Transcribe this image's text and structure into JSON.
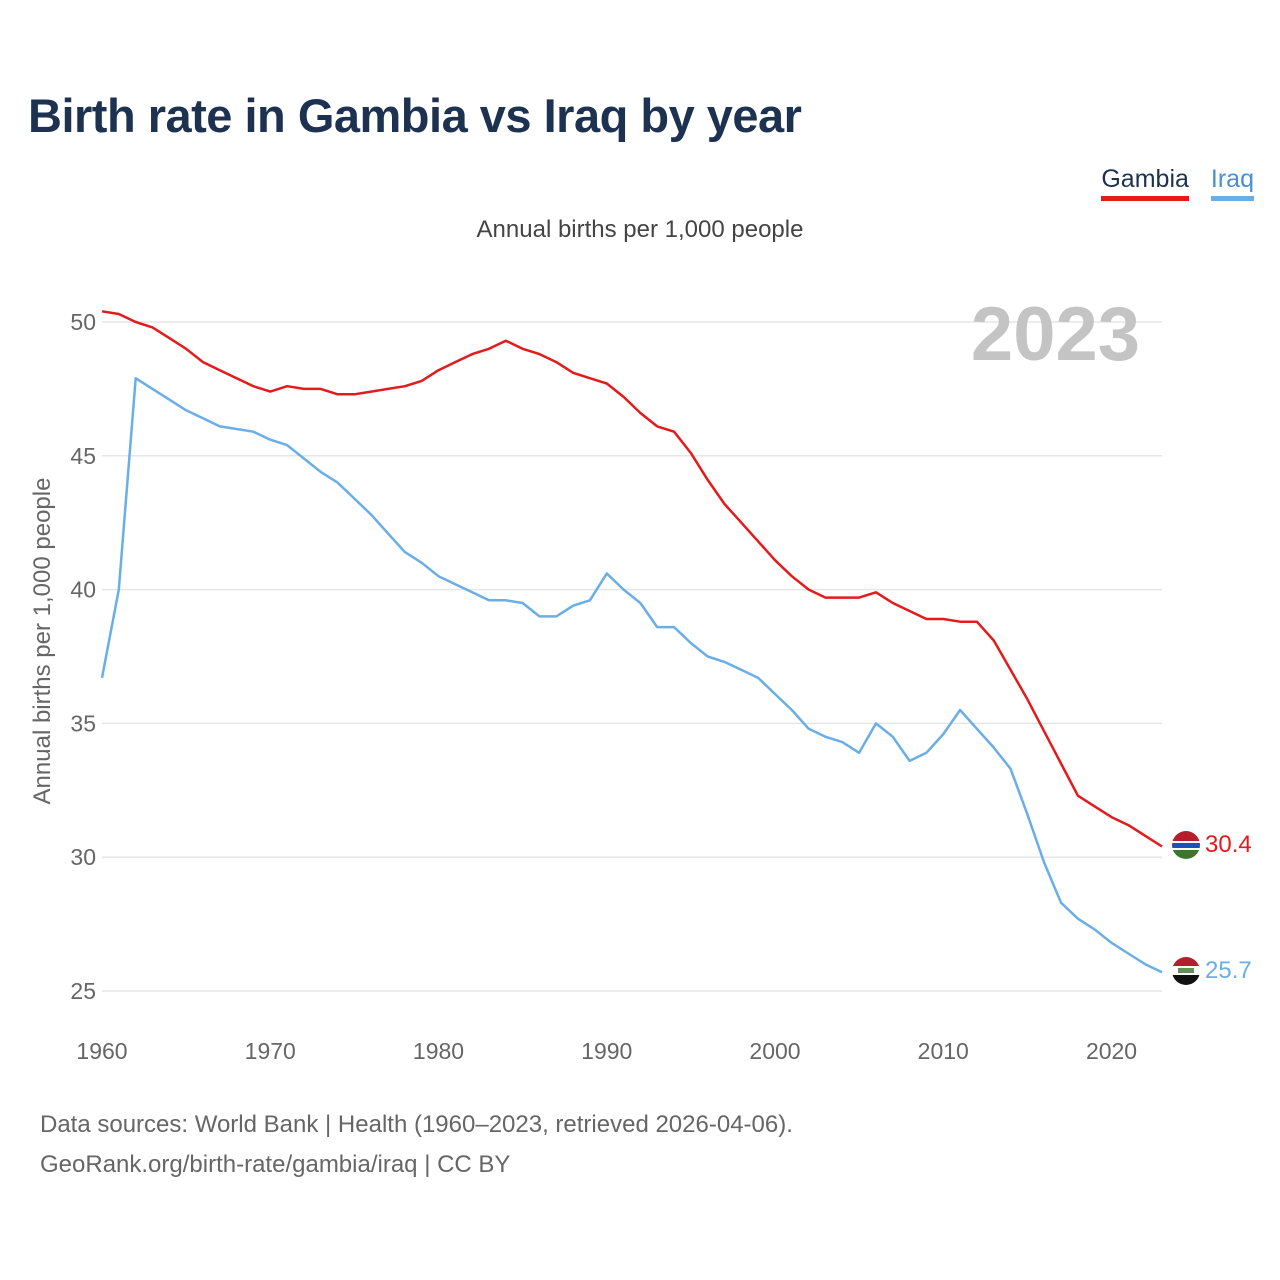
{
  "title": "Birth rate in Gambia vs Iraq by year",
  "legend": {
    "gambia": "Gambia",
    "iraq": "Iraq"
  },
  "subtitle": "Annual births per 1,000 people",
  "footer": {
    "line1": "Data sources: World Bank | Health (1960–2023, retrieved 2026-04-06).",
    "line2": "GeoRank.org/birth-rate/gambia/iraq | CC BY"
  },
  "chart_data": {
    "type": "line",
    "ylabel": "Annual births per 1,000 people",
    "year_label": "2023",
    "xlim": [
      1960,
      2023
    ],
    "ylim": [
      25,
      50
    ],
    "x_ticks": [
      1960,
      1970,
      1980,
      1990,
      2000,
      2010,
      2020
    ],
    "y_ticks": [
      25,
      30,
      35,
      40,
      45,
      50
    ],
    "series": [
      {
        "name": "Gambia",
        "color": "#e41a1c",
        "end_label": "30.4",
        "x": [
          1960,
          1961,
          1962,
          1963,
          1964,
          1965,
          1966,
          1967,
          1968,
          1969,
          1970,
          1971,
          1972,
          1973,
          1974,
          1975,
          1976,
          1977,
          1978,
          1979,
          1980,
          1981,
          1982,
          1983,
          1984,
          1985,
          1986,
          1987,
          1988,
          1989,
          1990,
          1991,
          1992,
          1993,
          1994,
          1995,
          1996,
          1997,
          1998,
          1999,
          2000,
          2001,
          2002,
          2003,
          2004,
          2005,
          2006,
          2007,
          2008,
          2009,
          2010,
          2011,
          2012,
          2013,
          2014,
          2015,
          2016,
          2017,
          2018,
          2019,
          2020,
          2021,
          2022,
          2023
        ],
        "values": [
          50.4,
          50.3,
          50.0,
          49.8,
          49.4,
          49.0,
          48.5,
          48.2,
          47.9,
          47.6,
          47.4,
          47.6,
          47.5,
          47.5,
          47.3,
          47.3,
          47.4,
          47.5,
          47.6,
          47.8,
          48.2,
          48.5,
          48.8,
          49.0,
          49.3,
          49.0,
          48.8,
          48.5,
          48.1,
          47.9,
          47.7,
          47.2,
          46.6,
          46.1,
          45.9,
          45.1,
          44.1,
          43.2,
          42.5,
          41.8,
          41.1,
          40.5,
          40.0,
          39.7,
          39.7,
          39.7,
          39.9,
          39.5,
          39.2,
          38.9,
          38.9,
          38.8,
          38.8,
          38.1,
          37.0,
          35.9,
          34.7,
          33.5,
          32.3,
          31.9,
          31.5,
          31.2,
          30.8,
          30.4
        ]
      },
      {
        "name": "Iraq",
        "color": "#6aaee8",
        "end_label": "25.7",
        "x": [
          1960,
          1961,
          1962,
          1963,
          1964,
          1965,
          1966,
          1967,
          1968,
          1969,
          1970,
          1971,
          1972,
          1973,
          1974,
          1975,
          1976,
          1977,
          1978,
          1979,
          1980,
          1981,
          1982,
          1983,
          1984,
          1985,
          1986,
          1987,
          1988,
          1989,
          1990,
          1991,
          1992,
          1993,
          1994,
          1995,
          1996,
          1997,
          1998,
          1999,
          2000,
          2001,
          2002,
          2003,
          2004,
          2005,
          2006,
          2007,
          2008,
          2009,
          2010,
          2011,
          2012,
          2013,
          2014,
          2015,
          2016,
          2017,
          2018,
          2019,
          2020,
          2021,
          2022,
          2023
        ],
        "values": [
          36.7,
          40.0,
          47.9,
          47.5,
          47.1,
          46.7,
          46.4,
          46.1,
          46.0,
          45.9,
          45.6,
          45.4,
          44.9,
          44.4,
          44.0,
          43.4,
          42.8,
          42.1,
          41.4,
          41.0,
          40.5,
          40.2,
          39.9,
          39.6,
          39.6,
          39.5,
          39.0,
          39.0,
          39.4,
          39.6,
          40.6,
          40.0,
          39.5,
          38.6,
          38.6,
          38.0,
          37.5,
          37.3,
          37.0,
          36.7,
          36.1,
          35.5,
          34.8,
          34.5,
          34.3,
          33.9,
          35.0,
          34.5,
          33.6,
          33.9,
          34.6,
          35.5,
          34.8,
          34.1,
          33.3,
          31.6,
          29.8,
          28.3,
          27.7,
          27.3,
          26.8,
          26.4,
          26.0,
          25.7
        ]
      }
    ]
  }
}
